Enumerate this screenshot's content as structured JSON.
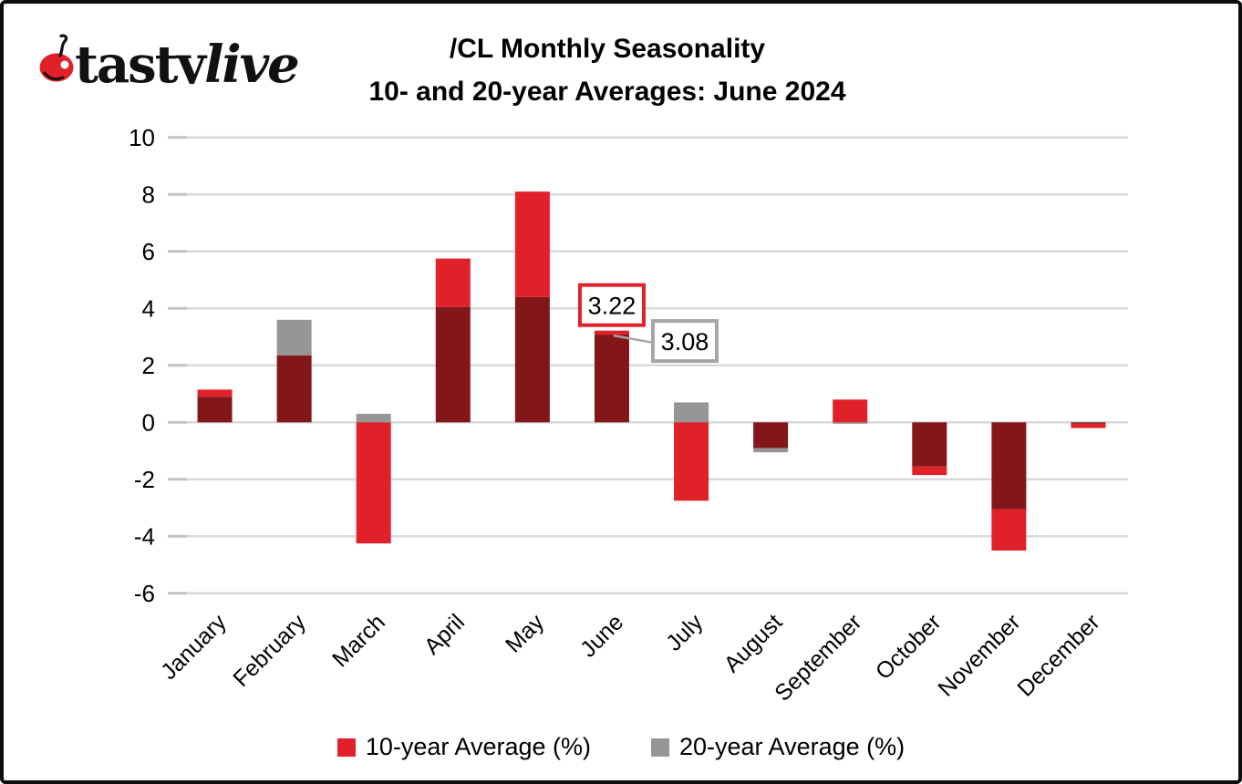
{
  "logo": {
    "brand_first": "tasty",
    "brand_second": "live",
    "cherry_color": "#e1212a",
    "ink_color": "#111111"
  },
  "title": {
    "line1": "/CL Monthly Seasonality",
    "line2": "10- and 20-year Averages: June 2024"
  },
  "chart_data": {
    "type": "bar",
    "subtype": "overlapping-bars",
    "categories": [
      "January",
      "February",
      "March",
      "April",
      "May",
      "June",
      "July",
      "August",
      "September",
      "October",
      "November",
      "December"
    ],
    "series": [
      {
        "name": "10-year Average (%)",
        "color": "#e1212a",
        "values": [
          1.15,
          2.35,
          -4.25,
          5.75,
          8.1,
          3.22,
          -2.75,
          -0.9,
          0.8,
          -1.85,
          -4.5,
          -0.2
        ]
      },
      {
        "name": "20-year Average (%)",
        "color": "#969696",
        "values": [
          0.9,
          3.6,
          0.3,
          4.05,
          4.4,
          3.08,
          0.7,
          -1.05,
          -0.05,
          -1.55,
          -3.05,
          -0.05
        ]
      }
    ],
    "overlap_color": "#831619",
    "ylim": [
      -6,
      10
    ],
    "ytick_step": 2,
    "ytick_labels": [
      "10",
      "8",
      "6",
      "4",
      "2",
      "0",
      "-2",
      "-4",
      "-6"
    ],
    "grid": true,
    "gridline_color": "#d9d9d9",
    "tick_color": "#c4c4c4",
    "axis_text_color": "#000000",
    "legend_position": "bottom",
    "annotations": [
      {
        "month": "June",
        "series": "10-year Average (%)",
        "label": "3.22",
        "border_color": "#e1212a"
      },
      {
        "month": "June",
        "series": "20-year Average (%)",
        "label": "3.08",
        "border_color": "#a6a6a6"
      }
    ]
  },
  "legend": {
    "items": [
      {
        "label": "10-year Average (%)",
        "color": "#e1212a"
      },
      {
        "label": "20-year Average (%)",
        "color": "#969696"
      }
    ]
  }
}
